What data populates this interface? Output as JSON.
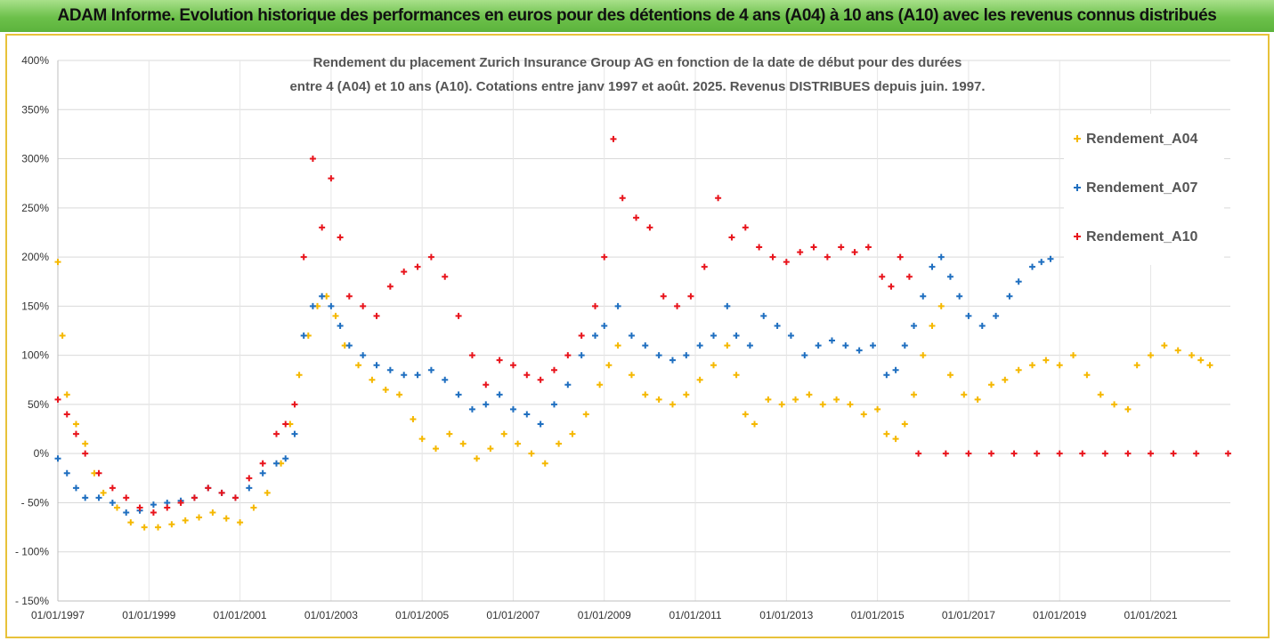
{
  "banner": {
    "title": "ADAM Informe. Evolution historique des performances en euros pour des détentions de 4 ans (A04) à 10 ans (A10) avec les revenus connus distribués"
  },
  "colors": {
    "banner": "#6cc04a",
    "frame": "#e8c23a",
    "A04": "#f5b800",
    "A07": "#1f6fc0",
    "A10": "#e8141c"
  },
  "chart_data": {
    "type": "scatter",
    "title_lines": [
      "Rendement du placement Zurich Insurance Group AG en fonction de la date de début pour des durées",
      "entre 4 (A04) et 10 ans (A10). Cotations entre janv 1997 et août. 2025. Revenus DISTRIBUES depuis juin. 1997."
    ],
    "y_tick_labels": [
      "400%",
      "350%",
      "300%",
      "250%",
      "200%",
      "150%",
      "100%",
      "50%",
      "0%",
      "- 50%",
      "- 100%",
      "- 150%"
    ],
    "y_ticks": [
      400,
      350,
      300,
      250,
      200,
      150,
      100,
      50,
      0,
      -50,
      -100,
      -150
    ],
    "ylim": [
      -150,
      400
    ],
    "x_tick_labels": [
      "01/01/1997",
      "01/01/1999",
      "01/01/2001",
      "01/01/2003",
      "01/01/2005",
      "01/01/2007",
      "01/01/2009",
      "01/01/2011",
      "01/01/2013",
      "01/01/2015",
      "01/01/2017",
      "01/01/2019",
      "01/01/2021"
    ],
    "x_ticks": [
      1997,
      1999,
      2001,
      2003,
      2005,
      2007,
      2009,
      2011,
      2013,
      2015,
      2017,
      2019,
      2021
    ],
    "xlim": [
      1997,
      2022.75
    ],
    "grid": true,
    "legend_position": "top-right",
    "series": [
      {
        "name": "Rendement_A04",
        "color": "#f5b800",
        "points": [
          [
            1997.0,
            195
          ],
          [
            1997.1,
            120
          ],
          [
            1997.2,
            60
          ],
          [
            1997.4,
            30
          ],
          [
            1997.6,
            10
          ],
          [
            1997.8,
            -20
          ],
          [
            1998.0,
            -40
          ],
          [
            1998.3,
            -55
          ],
          [
            1998.6,
            -70
          ],
          [
            1998.9,
            -75
          ],
          [
            1999.2,
            -75
          ],
          [
            1999.5,
            -72
          ],
          [
            1999.8,
            -68
          ],
          [
            2000.1,
            -65
          ],
          [
            2000.4,
            -60
          ],
          [
            2000.7,
            -66
          ],
          [
            2001.0,
            -70
          ],
          [
            2001.3,
            -55
          ],
          [
            2001.6,
            -40
          ],
          [
            2001.9,
            -10
          ],
          [
            2002.1,
            30
          ],
          [
            2002.3,
            80
          ],
          [
            2002.5,
            120
          ],
          [
            2002.7,
            150
          ],
          [
            2002.9,
            160
          ],
          [
            2003.1,
            140
          ],
          [
            2003.3,
            110
          ],
          [
            2003.6,
            90
          ],
          [
            2003.9,
            75
          ],
          [
            2004.2,
            65
          ],
          [
            2004.5,
            60
          ],
          [
            2004.8,
            35
          ],
          [
            2005.0,
            15
          ],
          [
            2005.3,
            5
          ],
          [
            2005.6,
            20
          ],
          [
            2005.9,
            10
          ],
          [
            2006.2,
            -5
          ],
          [
            2006.5,
            5
          ],
          [
            2006.8,
            20
          ],
          [
            2007.1,
            10
          ],
          [
            2007.4,
            0
          ],
          [
            2007.7,
            -10
          ],
          [
            2008.0,
            10
          ],
          [
            2008.3,
            20
          ],
          [
            2008.6,
            40
          ],
          [
            2008.9,
            70
          ],
          [
            2009.1,
            90
          ],
          [
            2009.3,
            110
          ],
          [
            2009.6,
            80
          ],
          [
            2009.9,
            60
          ],
          [
            2010.2,
            55
          ],
          [
            2010.5,
            50
          ],
          [
            2010.8,
            60
          ],
          [
            2011.1,
            75
          ],
          [
            2011.4,
            90
          ],
          [
            2011.7,
            110
          ],
          [
            2011.9,
            80
          ],
          [
            2012.1,
            40
          ],
          [
            2012.3,
            30
          ],
          [
            2012.6,
            55
          ],
          [
            2012.9,
            50
          ],
          [
            2013.2,
            55
          ],
          [
            2013.5,
            60
          ],
          [
            2013.8,
            50
          ],
          [
            2014.1,
            55
          ],
          [
            2014.4,
            50
          ],
          [
            2014.7,
            40
          ],
          [
            2015.0,
            45
          ],
          [
            2015.2,
            20
          ],
          [
            2015.4,
            15
          ],
          [
            2015.6,
            30
          ],
          [
            2015.8,
            60
          ],
          [
            2016.0,
            100
          ],
          [
            2016.2,
            130
          ],
          [
            2016.4,
            150
          ],
          [
            2016.6,
            80
          ],
          [
            2016.9,
            60
          ],
          [
            2017.2,
            55
          ],
          [
            2017.5,
            70
          ],
          [
            2017.8,
            75
          ],
          [
            2018.1,
            85
          ],
          [
            2018.4,
            90
          ],
          [
            2018.7,
            95
          ],
          [
            2019.0,
            90
          ],
          [
            2019.3,
            100
          ],
          [
            2019.6,
            80
          ],
          [
            2019.9,
            60
          ],
          [
            2020.2,
            50
          ],
          [
            2020.5,
            45
          ],
          [
            2020.7,
            90
          ],
          [
            2021.0,
            100
          ],
          [
            2021.3,
            110
          ],
          [
            2021.6,
            105
          ],
          [
            2021.9,
            100
          ],
          [
            2022.1,
            95
          ],
          [
            2022.3,
            90
          ]
        ]
      },
      {
        "name": "Rendement_A07",
        "color": "#1f6fc0",
        "points": [
          [
            1997.0,
            -5
          ],
          [
            1997.2,
            -20
          ],
          [
            1997.4,
            -35
          ],
          [
            1997.6,
            -45
          ],
          [
            1997.9,
            -45
          ],
          [
            1998.2,
            -50
          ],
          [
            1998.5,
            -60
          ],
          [
            1998.8,
            -58
          ],
          [
            1999.1,
            -52
          ],
          [
            1999.4,
            -50
          ],
          [
            1999.7,
            -48
          ],
          [
            2000.0,
            -45
          ],
          [
            2000.3,
            -35
          ],
          [
            2000.6,
            -40
          ],
          [
            2000.9,
            -45
          ],
          [
            2001.2,
            -35
          ],
          [
            2001.5,
            -20
          ],
          [
            2001.8,
            -10
          ],
          [
            2002.0,
            -5
          ],
          [
            2002.2,
            20
          ],
          [
            2002.4,
            120
          ],
          [
            2002.6,
            150
          ],
          [
            2002.8,
            160
          ],
          [
            2003.0,
            150
          ],
          [
            2003.2,
            130
          ],
          [
            2003.4,
            110
          ],
          [
            2003.7,
            100
          ],
          [
            2004.0,
            90
          ],
          [
            2004.3,
            85
          ],
          [
            2004.6,
            80
          ],
          [
            2004.9,
            80
          ],
          [
            2005.2,
            85
          ],
          [
            2005.5,
            75
          ],
          [
            2005.8,
            60
          ],
          [
            2006.1,
            45
          ],
          [
            2006.4,
            50
          ],
          [
            2006.7,
            60
          ],
          [
            2007.0,
            45
          ],
          [
            2007.3,
            40
          ],
          [
            2007.6,
            30
          ],
          [
            2007.9,
            50
          ],
          [
            2008.2,
            70
          ],
          [
            2008.5,
            100
          ],
          [
            2008.8,
            120
          ],
          [
            2009.0,
            130
          ],
          [
            2009.3,
            150
          ],
          [
            2009.6,
            120
          ],
          [
            2009.9,
            110
          ],
          [
            2010.2,
            100
          ],
          [
            2010.5,
            95
          ],
          [
            2010.8,
            100
          ],
          [
            2011.1,
            110
          ],
          [
            2011.4,
            120
          ],
          [
            2011.7,
            150
          ],
          [
            2011.9,
            120
          ],
          [
            2012.2,
            110
          ],
          [
            2012.5,
            140
          ],
          [
            2012.8,
            130
          ],
          [
            2013.1,
            120
          ],
          [
            2013.4,
            100
          ],
          [
            2013.7,
            110
          ],
          [
            2014.0,
            115
          ],
          [
            2014.3,
            110
          ],
          [
            2014.6,
            105
          ],
          [
            2014.9,
            110
          ],
          [
            2015.2,
            80
          ],
          [
            2015.4,
            85
          ],
          [
            2015.6,
            110
          ],
          [
            2015.8,
            130
          ],
          [
            2016.0,
            160
          ],
          [
            2016.2,
            190
          ],
          [
            2016.4,
            200
          ],
          [
            2016.6,
            180
          ],
          [
            2016.8,
            160
          ],
          [
            2017.0,
            140
          ],
          [
            2017.3,
            130
          ],
          [
            2017.6,
            140
          ],
          [
            2017.9,
            160
          ],
          [
            2018.1,
            175
          ],
          [
            2018.4,
            190
          ],
          [
            2018.6,
            195
          ],
          [
            2018.8,
            198
          ]
        ]
      },
      {
        "name": "Rendement_A10",
        "color": "#e8141c",
        "points": [
          [
            1997.0,
            55
          ],
          [
            1997.2,
            40
          ],
          [
            1997.4,
            20
          ],
          [
            1997.6,
            0
          ],
          [
            1997.9,
            -20
          ],
          [
            1998.2,
            -35
          ],
          [
            1998.5,
            -45
          ],
          [
            1998.8,
            -55
          ],
          [
            1999.1,
            -60
          ],
          [
            1999.4,
            -55
          ],
          [
            1999.7,
            -50
          ],
          [
            2000.0,
            -45
          ],
          [
            2000.3,
            -35
          ],
          [
            2000.6,
            -40
          ],
          [
            2000.9,
            -45
          ],
          [
            2001.2,
            -25
          ],
          [
            2001.5,
            -10
          ],
          [
            2001.8,
            20
          ],
          [
            2002.0,
            30
          ],
          [
            2002.2,
            50
          ],
          [
            2002.4,
            200
          ],
          [
            2002.6,
            300
          ],
          [
            2002.8,
            230
          ],
          [
            2003.0,
            280
          ],
          [
            2003.2,
            220
          ],
          [
            2003.4,
            160
          ],
          [
            2003.7,
            150
          ],
          [
            2004.0,
            140
          ],
          [
            2004.3,
            170
          ],
          [
            2004.6,
            185
          ],
          [
            2004.9,
            190
          ],
          [
            2005.2,
            200
          ],
          [
            2005.5,
            180
          ],
          [
            2005.8,
            140
          ],
          [
            2006.1,
            100
          ],
          [
            2006.4,
            70
          ],
          [
            2006.7,
            95
          ],
          [
            2007.0,
            90
          ],
          [
            2007.3,
            80
          ],
          [
            2007.6,
            75
          ],
          [
            2007.9,
            85
          ],
          [
            2008.2,
            100
          ],
          [
            2008.5,
            120
          ],
          [
            2008.8,
            150
          ],
          [
            2009.0,
            200
          ],
          [
            2009.2,
            320
          ],
          [
            2009.4,
            260
          ],
          [
            2009.7,
            240
          ],
          [
            2010.0,
            230
          ],
          [
            2010.3,
            160
          ],
          [
            2010.6,
            150
          ],
          [
            2010.9,
            160
          ],
          [
            2011.2,
            190
          ],
          [
            2011.5,
            260
          ],
          [
            2011.8,
            220
          ],
          [
            2012.1,
            230
          ],
          [
            2012.4,
            210
          ],
          [
            2012.7,
            200
          ],
          [
            2013.0,
            195
          ],
          [
            2013.3,
            205
          ],
          [
            2013.6,
            210
          ],
          [
            2013.9,
            200
          ],
          [
            2014.2,
            210
          ],
          [
            2014.5,
            205
          ],
          [
            2014.8,
            210
          ],
          [
            2015.1,
            180
          ],
          [
            2015.3,
            170
          ],
          [
            2015.5,
            200
          ],
          [
            2015.7,
            180
          ],
          [
            2015.9,
            0
          ],
          [
            2016.5,
            0
          ],
          [
            2017.0,
            0
          ],
          [
            2017.5,
            0
          ],
          [
            2018.0,
            0
          ],
          [
            2018.5,
            0
          ],
          [
            2019.0,
            0
          ],
          [
            2019.5,
            0
          ],
          [
            2020.0,
            0
          ],
          [
            2020.5,
            0
          ],
          [
            2021.0,
            0
          ],
          [
            2021.5,
            0
          ],
          [
            2022.0,
            0
          ],
          [
            2022.7,
            0
          ]
        ]
      }
    ]
  }
}
